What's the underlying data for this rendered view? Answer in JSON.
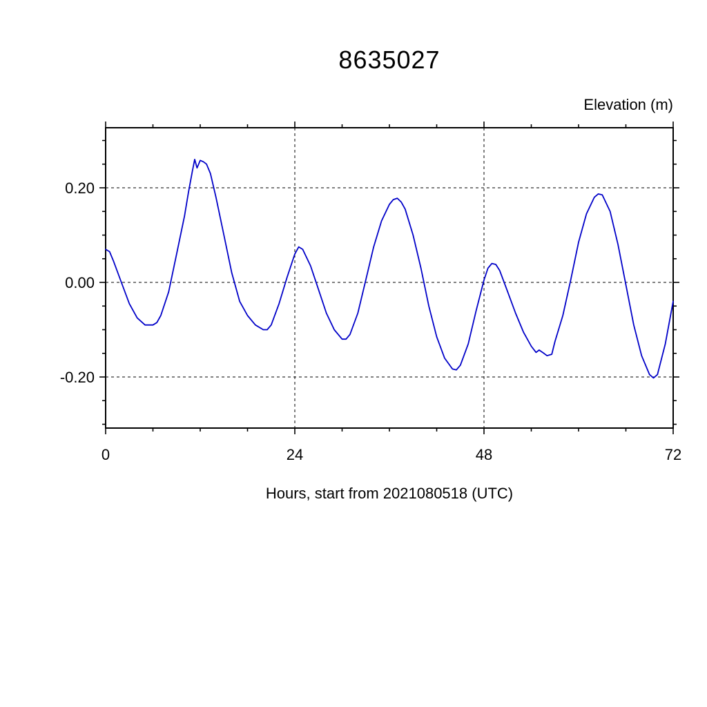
{
  "title": "8635027",
  "y_axis_label": "Elevation (m)",
  "x_axis_label": "Hours, start from 2021080518 (UTC)",
  "chart_data": {
    "type": "line",
    "title": "8635027",
    "xlabel": "Hours, start from 2021080518 (UTC)",
    "ylabel": "Elevation (m)",
    "xlim": [
      0,
      72
    ],
    "ylim": [
      -0.308,
      0.327
    ],
    "x_major_ticks": [
      0,
      24,
      48,
      72
    ],
    "x_major_tick_labels": [
      "0",
      "24",
      "48",
      "72"
    ],
    "x_minor_ticks": [
      6,
      12,
      18,
      30,
      36,
      42,
      54,
      60,
      66
    ],
    "y_major_ticks": [
      0.2,
      0.0,
      -0.2
    ],
    "y_major_tick_labels": [
      "0.20",
      "0.00",
      "-0.20"
    ],
    "y_minor_ticks": [
      -0.3,
      -0.25,
      -0.15,
      -0.1,
      -0.05,
      0.05,
      0.1,
      0.15,
      0.25,
      0.3
    ],
    "x_gridlines": [
      24,
      48
    ],
    "y_gridlines": [
      0.2,
      0.0,
      -0.2
    ],
    "grid_style": "dashed",
    "legend": "none",
    "line_color": "#0000c8",
    "series": [
      {
        "name": "elevation",
        "points": [
          [
            0,
            0.07
          ],
          [
            0.5,
            0.065
          ],
          [
            1,
            0.045
          ],
          [
            2,
            0.0
          ],
          [
            3,
            -0.045
          ],
          [
            4,
            -0.075
          ],
          [
            5,
            -0.09
          ],
          [
            6,
            -0.09
          ],
          [
            6.5,
            -0.085
          ],
          [
            7,
            -0.07
          ],
          [
            8,
            -0.02
          ],
          [
            9,
            0.06
          ],
          [
            10,
            0.14
          ],
          [
            10.5,
            0.19
          ],
          [
            11,
            0.235
          ],
          [
            11.3,
            0.26
          ],
          [
            11.6,
            0.242
          ],
          [
            12,
            0.258
          ],
          [
            12.4,
            0.255
          ],
          [
            12.8,
            0.25
          ],
          [
            13.3,
            0.23
          ],
          [
            14,
            0.18
          ],
          [
            15,
            0.1
          ],
          [
            16,
            0.02
          ],
          [
            17,
            -0.04
          ],
          [
            18,
            -0.07
          ],
          [
            19,
            -0.09
          ],
          [
            20,
            -0.1
          ],
          [
            20.5,
            -0.1
          ],
          [
            21,
            -0.09
          ],
          [
            22,
            -0.045
          ],
          [
            23,
            0.01
          ],
          [
            24,
            0.06
          ],
          [
            24.5,
            0.075
          ],
          [
            25,
            0.07
          ],
          [
            26,
            0.035
          ],
          [
            27,
            -0.015
          ],
          [
            28,
            -0.065
          ],
          [
            29,
            -0.1
          ],
          [
            30,
            -0.12
          ],
          [
            30.5,
            -0.12
          ],
          [
            31,
            -0.11
          ],
          [
            32,
            -0.065
          ],
          [
            33,
            0.005
          ],
          [
            34,
            0.075
          ],
          [
            35,
            0.13
          ],
          [
            36,
            0.165
          ],
          [
            36.5,
            0.175
          ],
          [
            37,
            0.178
          ],
          [
            37.5,
            0.17
          ],
          [
            38,
            0.155
          ],
          [
            39,
            0.1
          ],
          [
            40,
            0.03
          ],
          [
            41,
            -0.05
          ],
          [
            42,
            -0.115
          ],
          [
            43,
            -0.16
          ],
          [
            44,
            -0.183
          ],
          [
            44.5,
            -0.185
          ],
          [
            45,
            -0.175
          ],
          [
            46,
            -0.13
          ],
          [
            47,
            -0.06
          ],
          [
            48,
            0.005
          ],
          [
            48.5,
            0.03
          ],
          [
            49,
            0.04
          ],
          [
            49.5,
            0.038
          ],
          [
            50,
            0.025
          ],
          [
            51,
            -0.02
          ],
          [
            52,
            -0.065
          ],
          [
            53,
            -0.105
          ],
          [
            54,
            -0.135
          ],
          [
            54.6,
            -0.148
          ],
          [
            55,
            -0.143
          ],
          [
            55.6,
            -0.15
          ],
          [
            56,
            -0.155
          ],
          [
            56.6,
            -0.152
          ],
          [
            57,
            -0.125
          ],
          [
            58,
            -0.07
          ],
          [
            59,
            0.005
          ],
          [
            60,
            0.085
          ],
          [
            61,
            0.145
          ],
          [
            62,
            0.18
          ],
          [
            62.5,
            0.187
          ],
          [
            63,
            0.185
          ],
          [
            64,
            0.15
          ],
          [
            65,
            0.08
          ],
          [
            66,
            -0.005
          ],
          [
            67,
            -0.09
          ],
          [
            68,
            -0.155
          ],
          [
            69,
            -0.195
          ],
          [
            69.5,
            -0.202
          ],
          [
            70,
            -0.195
          ],
          [
            71,
            -0.13
          ],
          [
            72,
            -0.04
          ]
        ]
      }
    ]
  }
}
